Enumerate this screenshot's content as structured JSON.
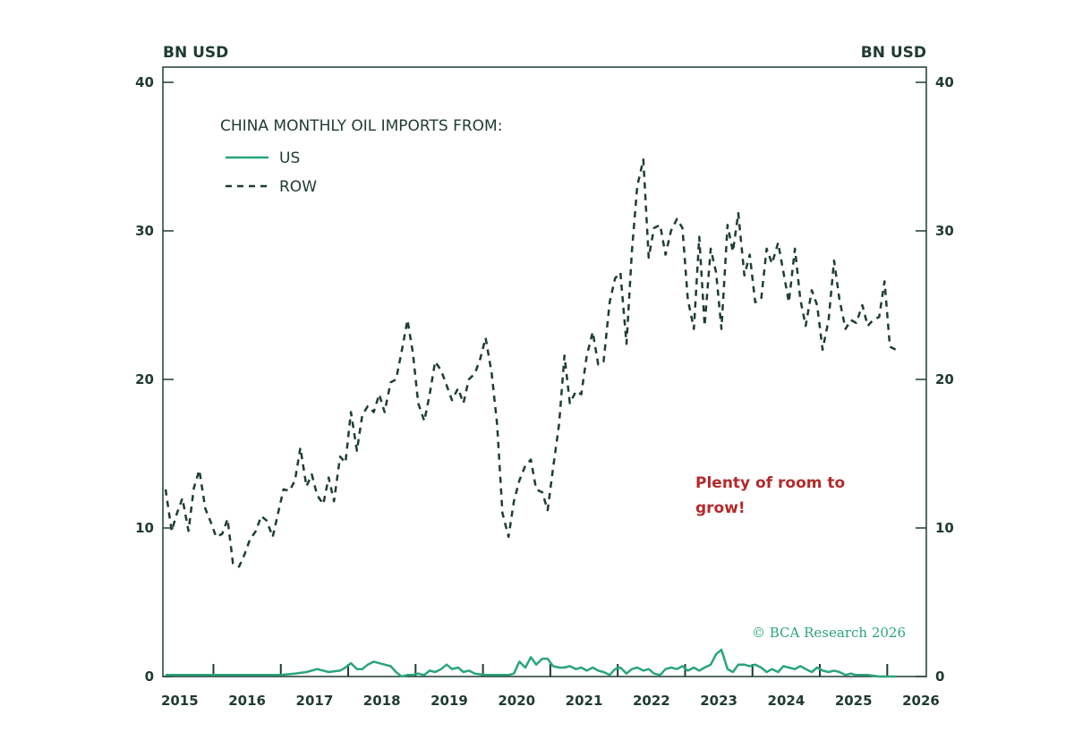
{
  "chart_data": {
    "type": "line",
    "left_unit_label": "BN USD",
    "right_unit_label": "BN USD",
    "ylim": [
      0,
      40
    ],
    "yticks": [
      0,
      10,
      20,
      30,
      40
    ],
    "xlim": [
      2014.75,
      2026.08
    ],
    "year_labels": [
      "2015",
      "2016",
      "2017",
      "2018",
      "2019",
      "2020",
      "2021",
      "2022",
      "2023",
      "2024",
      "2025",
      "2026"
    ],
    "legend": {
      "title": "CHINA MONTHLY OIL IMPORTS FROM:",
      "entries": [
        {
          "label": "US",
          "style": "solid",
          "color": "#2aa57a"
        },
        {
          "label": "ROW",
          "style": "dashed",
          "color": "#1e3d35"
        }
      ]
    },
    "annotation": [
      "Plenty of room to",
      "grow!"
    ],
    "credit": "© BCA Research 2026",
    "colors": {
      "axis": "#1f3b33",
      "us": "#2aa57a",
      "row": "#1e3d35",
      "annotation": "#b22b2b"
    },
    "series": [
      {
        "name": "ROW",
        "points": [
          [
            2014.79,
            12.6
          ],
          [
            2014.88,
            9.8
          ],
          [
            2014.96,
            11.0
          ],
          [
            2015.04,
            12.0
          ],
          [
            2015.13,
            9.8
          ],
          [
            2015.21,
            12.7
          ],
          [
            2015.29,
            13.9
          ],
          [
            2015.38,
            11.3
          ],
          [
            2015.46,
            10.4
          ],
          [
            2015.54,
            9.4
          ],
          [
            2015.63,
            9.6
          ],
          [
            2015.71,
            10.6
          ],
          [
            2015.79,
            7.6
          ],
          [
            2015.88,
            7.4
          ],
          [
            2015.96,
            8.2
          ],
          [
            2016.04,
            9.2
          ],
          [
            2016.13,
            9.8
          ],
          [
            2016.21,
            10.8
          ],
          [
            2016.29,
            10.5
          ],
          [
            2016.38,
            9.4
          ],
          [
            2016.46,
            11.0
          ],
          [
            2016.54,
            12.6
          ],
          [
            2016.63,
            12.5
          ],
          [
            2016.71,
            13.2
          ],
          [
            2016.79,
            15.4
          ],
          [
            2016.88,
            12.8
          ],
          [
            2016.96,
            13.6
          ],
          [
            2017.04,
            12.2
          ],
          [
            2017.13,
            11.6
          ],
          [
            2017.21,
            13.4
          ],
          [
            2017.29,
            11.8
          ],
          [
            2017.38,
            14.8
          ],
          [
            2017.46,
            14.4
          ],
          [
            2017.54,
            17.8
          ],
          [
            2017.63,
            15.2
          ],
          [
            2017.71,
            17.6
          ],
          [
            2017.79,
            18.2
          ],
          [
            2017.88,
            17.8
          ],
          [
            2017.96,
            19.0
          ],
          [
            2018.04,
            17.8
          ],
          [
            2018.13,
            19.8
          ],
          [
            2018.21,
            20.0
          ],
          [
            2018.29,
            21.8
          ],
          [
            2018.38,
            24.0
          ],
          [
            2018.46,
            21.8
          ],
          [
            2018.54,
            18.4
          ],
          [
            2018.63,
            17.2
          ],
          [
            2018.71,
            19.0
          ],
          [
            2018.79,
            21.2
          ],
          [
            2018.88,
            20.6
          ],
          [
            2018.96,
            19.6
          ],
          [
            2019.04,
            18.6
          ],
          [
            2019.13,
            19.4
          ],
          [
            2019.21,
            18.4
          ],
          [
            2019.29,
            20.0
          ],
          [
            2019.38,
            20.4
          ],
          [
            2019.46,
            21.4
          ],
          [
            2019.54,
            22.8
          ],
          [
            2019.63,
            20.4
          ],
          [
            2019.71,
            17.0
          ],
          [
            2019.79,
            11.0
          ],
          [
            2019.88,
            9.4
          ],
          [
            2019.96,
            11.8
          ],
          [
            2020.04,
            13.2
          ],
          [
            2020.13,
            14.2
          ],
          [
            2020.21,
            14.6
          ],
          [
            2020.29,
            12.6
          ],
          [
            2020.38,
            12.4
          ],
          [
            2020.46,
            11.2
          ],
          [
            2020.54,
            14.0
          ],
          [
            2020.63,
            17.0
          ],
          [
            2020.71,
            21.6
          ],
          [
            2020.79,
            18.4
          ],
          [
            2020.88,
            19.2
          ],
          [
            2020.96,
            19.0
          ],
          [
            2021.04,
            21.6
          ],
          [
            2021.13,
            23.2
          ],
          [
            2021.21,
            21.0
          ],
          [
            2021.29,
            21.2
          ],
          [
            2021.38,
            25.2
          ],
          [
            2021.46,
            26.8
          ],
          [
            2021.54,
            27.2
          ],
          [
            2021.63,
            22.4
          ],
          [
            2021.71,
            28.6
          ],
          [
            2021.79,
            33.0
          ],
          [
            2021.88,
            34.8
          ],
          [
            2021.96,
            28.2
          ],
          [
            2022.04,
            30.2
          ],
          [
            2022.13,
            30.4
          ],
          [
            2022.21,
            28.4
          ],
          [
            2022.29,
            30.0
          ],
          [
            2022.38,
            30.8
          ],
          [
            2022.46,
            30.2
          ],
          [
            2022.54,
            25.4
          ],
          [
            2022.63,
            23.4
          ],
          [
            2022.71,
            29.6
          ],
          [
            2022.79,
            23.6
          ],
          [
            2022.88,
            28.8
          ],
          [
            2022.96,
            27.2
          ],
          [
            2023.04,
            23.4
          ],
          [
            2023.13,
            30.4
          ],
          [
            2023.21,
            28.6
          ],
          [
            2023.29,
            31.2
          ],
          [
            2023.38,
            27.0
          ],
          [
            2023.46,
            28.4
          ],
          [
            2023.54,
            25.2
          ],
          [
            2023.63,
            25.4
          ],
          [
            2023.71,
            28.8
          ],
          [
            2023.79,
            27.8
          ],
          [
            2023.88,
            29.2
          ],
          [
            2023.96,
            27.2
          ],
          [
            2024.04,
            25.2
          ],
          [
            2024.13,
            28.8
          ],
          [
            2024.21,
            25.4
          ],
          [
            2024.29,
            23.6
          ],
          [
            2024.38,
            26.0
          ],
          [
            2024.46,
            25.0
          ],
          [
            2024.54,
            22.0
          ],
          [
            2024.63,
            24.0
          ],
          [
            2024.71,
            28.0
          ],
          [
            2024.79,
            25.4
          ],
          [
            2024.88,
            23.4
          ],
          [
            2024.96,
            24.0
          ],
          [
            2025.04,
            23.8
          ],
          [
            2025.13,
            25.0
          ],
          [
            2025.21,
            23.6
          ],
          [
            2025.29,
            24.0
          ],
          [
            2025.38,
            24.2
          ],
          [
            2025.46,
            26.6
          ],
          [
            2025.54,
            22.2
          ],
          [
            2025.63,
            22.0
          ]
        ]
      },
      {
        "name": "US",
        "points": [
          [
            2014.79,
            0.1
          ],
          [
            2015.0,
            0.1
          ],
          [
            2015.5,
            0.1
          ],
          [
            2016.0,
            0.1
          ],
          [
            2016.25,
            0.1
          ],
          [
            2016.5,
            0.1
          ],
          [
            2016.71,
            0.2
          ],
          [
            2016.88,
            0.3
          ],
          [
            2017.04,
            0.5
          ],
          [
            2017.21,
            0.3
          ],
          [
            2017.38,
            0.4
          ],
          [
            2017.46,
            0.6
          ],
          [
            2017.54,
            0.9
          ],
          [
            2017.63,
            0.5
          ],
          [
            2017.71,
            0.5
          ],
          [
            2017.79,
            0.8
          ],
          [
            2017.88,
            1.0
          ],
          [
            2017.96,
            0.9
          ],
          [
            2018.04,
            0.8
          ],
          [
            2018.13,
            0.7
          ],
          [
            2018.21,
            0.3
          ],
          [
            2018.29,
            0.0
          ],
          [
            2018.38,
            0.1
          ],
          [
            2018.46,
            0.1
          ],
          [
            2018.54,
            0.2
          ],
          [
            2018.63,
            0.1
          ],
          [
            2018.71,
            0.4
          ],
          [
            2018.79,
            0.3
          ],
          [
            2018.88,
            0.5
          ],
          [
            2018.96,
            0.8
          ],
          [
            2019.04,
            0.5
          ],
          [
            2019.13,
            0.6
          ],
          [
            2019.21,
            0.3
          ],
          [
            2019.29,
            0.4
          ],
          [
            2019.38,
            0.2
          ],
          [
            2019.54,
            0.1
          ],
          [
            2019.71,
            0.1
          ],
          [
            2019.79,
            0.1
          ],
          [
            2019.88,
            0.1
          ],
          [
            2019.96,
            0.2
          ],
          [
            2020.04,
            1.0
          ],
          [
            2020.13,
            0.6
          ],
          [
            2020.21,
            1.3
          ],
          [
            2020.29,
            0.8
          ],
          [
            2020.38,
            1.2
          ],
          [
            2020.46,
            1.2
          ],
          [
            2020.54,
            0.7
          ],
          [
            2020.63,
            0.6
          ],
          [
            2020.71,
            0.6
          ],
          [
            2020.79,
            0.7
          ],
          [
            2020.88,
            0.5
          ],
          [
            2020.96,
            0.6
          ],
          [
            2021.04,
            0.4
          ],
          [
            2021.13,
            0.6
          ],
          [
            2021.21,
            0.4
          ],
          [
            2021.29,
            0.3
          ],
          [
            2021.38,
            0.1
          ],
          [
            2021.46,
            0.5
          ],
          [
            2021.54,
            0.6
          ],
          [
            2021.63,
            0.2
          ],
          [
            2021.71,
            0.5
          ],
          [
            2021.79,
            0.6
          ],
          [
            2021.88,
            0.4
          ],
          [
            2021.96,
            0.5
          ],
          [
            2022.04,
            0.2
          ],
          [
            2022.13,
            0.1
          ],
          [
            2022.21,
            0.5
          ],
          [
            2022.29,
            0.6
          ],
          [
            2022.38,
            0.5
          ],
          [
            2022.46,
            0.7
          ],
          [
            2022.54,
            0.4
          ],
          [
            2022.63,
            0.6
          ],
          [
            2022.71,
            0.4
          ],
          [
            2022.79,
            0.6
          ],
          [
            2022.88,
            0.8
          ],
          [
            2022.96,
            1.5
          ],
          [
            2023.04,
            1.8
          ],
          [
            2023.13,
            0.5
          ],
          [
            2023.21,
            0.3
          ],
          [
            2023.29,
            0.8
          ],
          [
            2023.38,
            0.8
          ],
          [
            2023.46,
            0.7
          ],
          [
            2023.54,
            0.8
          ],
          [
            2023.63,
            0.6
          ],
          [
            2023.71,
            0.3
          ],
          [
            2023.79,
            0.5
          ],
          [
            2023.88,
            0.3
          ],
          [
            2023.96,
            0.7
          ],
          [
            2024.04,
            0.6
          ],
          [
            2024.13,
            0.5
          ],
          [
            2024.21,
            0.7
          ],
          [
            2024.29,
            0.5
          ],
          [
            2024.38,
            0.3
          ],
          [
            2024.46,
            0.6
          ],
          [
            2024.54,
            0.4
          ],
          [
            2024.63,
            0.3
          ],
          [
            2024.71,
            0.4
          ],
          [
            2024.79,
            0.3
          ],
          [
            2024.88,
            0.1
          ],
          [
            2024.96,
            0.2
          ],
          [
            2025.04,
            0.1
          ],
          [
            2025.21,
            0.1
          ],
          [
            2025.38,
            0.0
          ],
          [
            2025.54,
            0.0
          ],
          [
            2025.63,
            0.0
          ]
        ]
      }
    ]
  }
}
